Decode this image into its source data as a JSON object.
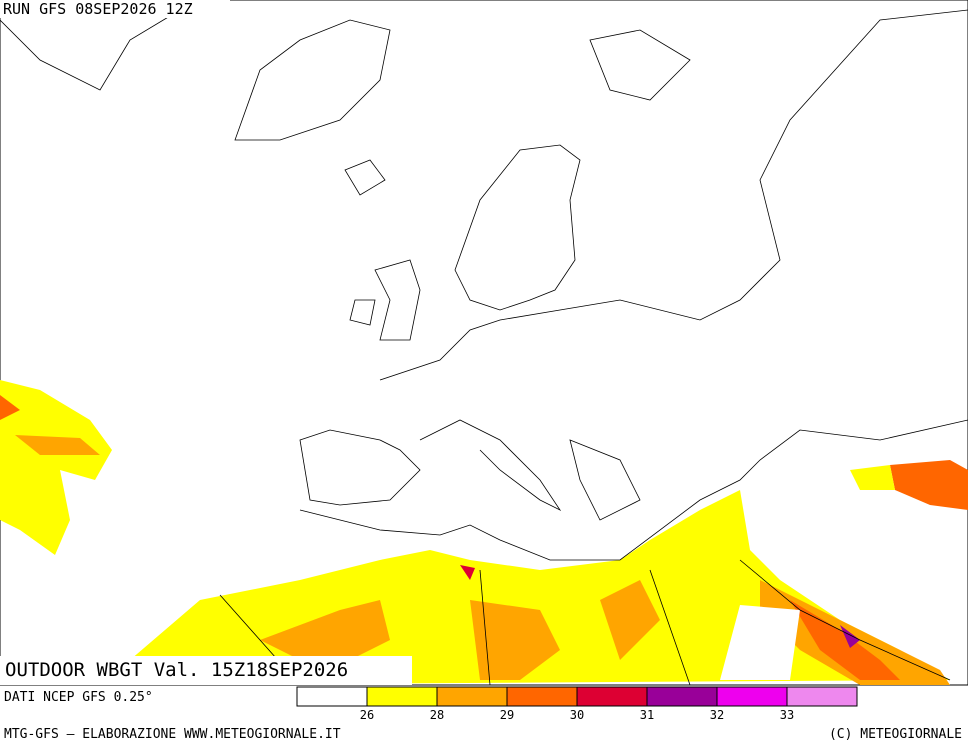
{
  "header": {
    "run": "RUN GFS 08SEP2026 12Z"
  },
  "map_title": "OUTDOOR WBGT Val. 15Z18SEP2026",
  "source": "DATI NCEP GFS 0.25°",
  "footer": {
    "left": "MTG-GFS — ELABORAZIONE WWW.METEOGIORNALE.IT",
    "right": "(C) METEOGIORNALE"
  },
  "colorbar": {
    "colors": [
      "#ffffff",
      "#ffff00",
      "#ffa500",
      "#ff6600",
      "#dd0033",
      "#990099",
      "#ee00ee",
      "#ee88ee"
    ],
    "labels": [
      26,
      28,
      29,
      30,
      31,
      32,
      33
    ]
  }
}
